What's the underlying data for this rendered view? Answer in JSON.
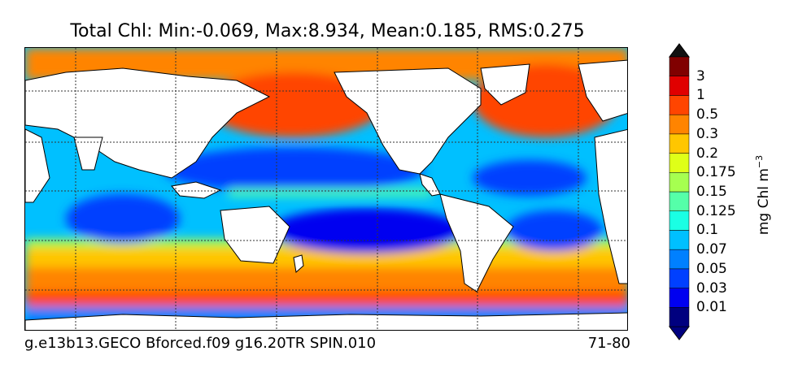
{
  "title": "Total Chl: Min:-0.069, Max:8.934, Mean:0.185, RMS:0.275",
  "footer": {
    "run_name": "g.e13b13.GECO Bforced.f09 g16.20TR SPIN.010",
    "years": "71-80"
  },
  "colorbar": {
    "unit_prefix": "mg Chl m",
    "unit_exp": "−3",
    "levels": [
      "0.01",
      "0.03",
      "0.05",
      "0.07",
      "0.1",
      "0.125",
      "0.15",
      "0.175",
      "0.2",
      "0.3",
      "0.5",
      "1",
      "3"
    ],
    "colors": [
      "#00007f",
      "#0000f0",
      "#0040ff",
      "#0080ff",
      "#00c0ff",
      "#1affe4",
      "#55ffa9",
      "#a6ff50",
      "#dfff18",
      "#ffc600",
      "#ff8400",
      "#ff4500",
      "#e00000",
      "#800000"
    ]
  },
  "chart_data": {
    "type": "heatmap",
    "title": "Total Chl: Min:-0.069, Max:8.934, Mean:0.185, RMS:0.275",
    "variable": "Total Chl",
    "stats": {
      "min": -0.069,
      "max": 8.934,
      "mean": 0.185,
      "rms": 0.275
    },
    "unit": "mg Chl m^-3",
    "color_levels": [
      0.01,
      0.03,
      0.05,
      0.07,
      0.1,
      0.125,
      0.15,
      0.175,
      0.2,
      0.3,
      0.5,
      1,
      3
    ],
    "projection": "global lat-lon",
    "grid": true
  }
}
